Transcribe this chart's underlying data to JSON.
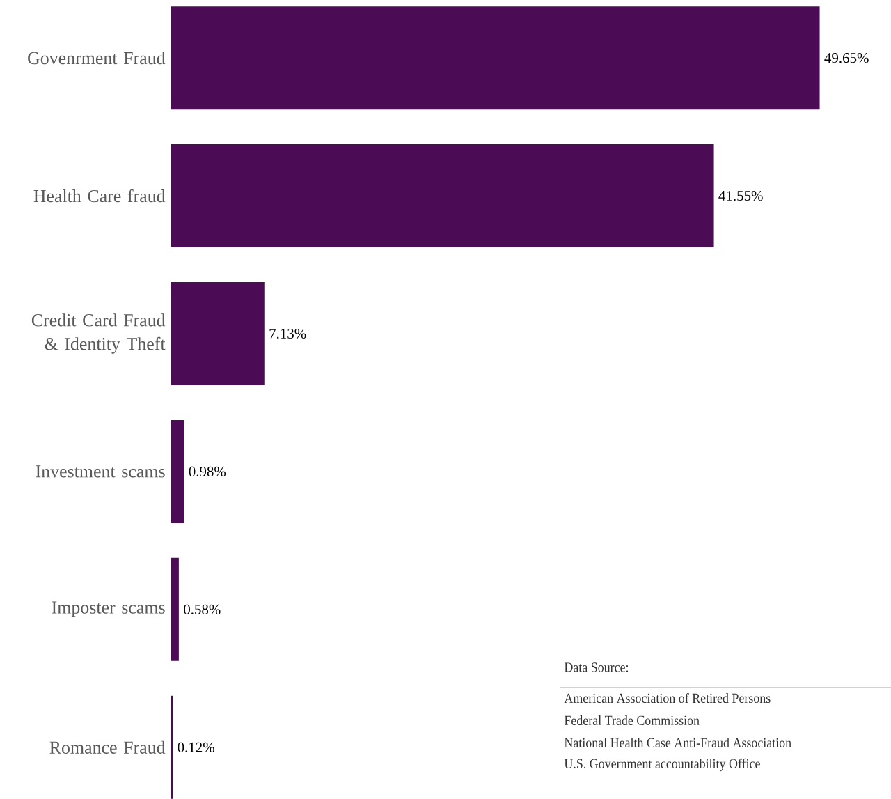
{
  "chart_data": {
    "type": "bar",
    "orientation": "horizontal",
    "categories": [
      "Govenrment Fraud",
      "Health Care fraud",
      "Credit Card Fraud & Identity Theft",
      "Investment scams",
      "Imposter scams",
      "Romance Fraud"
    ],
    "values": [
      49.65,
      41.55,
      7.13,
      0.98,
      0.58,
      0.12
    ],
    "value_labels": [
      "49.65%",
      "41.55%",
      "7.13%",
      "0.98%",
      "0.58%",
      "0.12%"
    ],
    "color": "#4b0c55",
    "annotations": [
      "Data Source:",
      "American Association of Retired Persons",
      "Federal Trade Commission",
      "National Health Case Anti-Fraud Association",
      "U.S. Government accountability Office"
    ]
  }
}
